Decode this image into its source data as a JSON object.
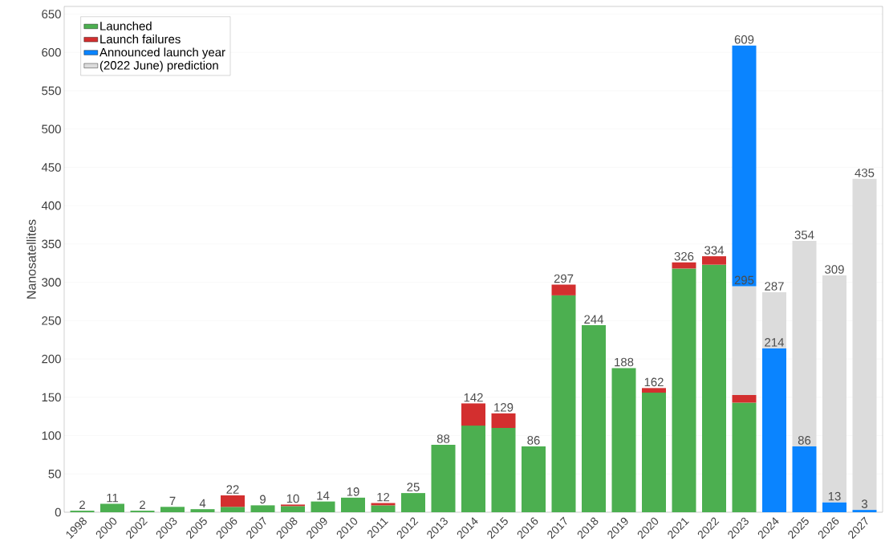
{
  "chart_data": {
    "type": "bar",
    "stacked": true,
    "ylabel": "Nanosatellites",
    "categories": [
      "1998",
      "2000",
      "2002",
      "2003",
      "2005",
      "2006",
      "2007",
      "2008",
      "2009",
      "2010",
      "2011",
      "2012",
      "2013",
      "2014",
      "2015",
      "2016",
      "2017",
      "2018",
      "2019",
      "2020",
      "2021",
      "2022",
      "2023",
      "2024",
      "2025",
      "2026",
      "2027"
    ],
    "series": [
      {
        "name": "Launched",
        "color": "#4caf50",
        "values": [
          2,
          11,
          2,
          7,
          4,
          7,
          9,
          8,
          14,
          19,
          9,
          25,
          88,
          113,
          110,
          86,
          283,
          244,
          188,
          156,
          318,
          323,
          143,
          null,
          null,
          null,
          null
        ]
      },
      {
        "name": "Launch failures",
        "color": "#d32f2f",
        "values": [
          null,
          null,
          null,
          null,
          null,
          15,
          null,
          2,
          null,
          null,
          3,
          null,
          null,
          29,
          19,
          null,
          14,
          null,
          null,
          6,
          8,
          11,
          10,
          null,
          null,
          null,
          null
        ]
      },
      {
        "color": "#dcdcdc",
        "values": [
          null,
          null,
          null,
          null,
          null,
          null,
          null,
          null,
          null,
          null,
          null,
          null,
          null,
          null,
          null,
          null,
          null,
          null,
          null,
          null,
          null,
          null,
          142,
          null,
          null,
          null,
          null
        ]
      },
      {
        "name": "Announced launch year",
        "color": "#0a84ff",
        "values": [
          null,
          null,
          null,
          null,
          null,
          null,
          null,
          null,
          null,
          null,
          null,
          null,
          null,
          null,
          null,
          null,
          null,
          null,
          null,
          null,
          null,
          null,
          314,
          214,
          86,
          13,
          3
        ]
      },
      {
        "name": "(2022 June) prediction",
        "color": "#dcdcdc",
        "values": [
          null,
          null,
          null,
          null,
          null,
          null,
          null,
          null,
          null,
          null,
          null,
          null,
          null,
          null,
          null,
          null,
          null,
          null,
          null,
          null,
          null,
          null,
          null,
          73,
          268,
          296,
          432
        ]
      }
    ],
    "totals": [
      "2",
      "11",
      "2",
      "7",
      "4",
      "22",
      "9",
      "10",
      "14",
      "19",
      "12",
      "25",
      "88",
      "142",
      "129",
      "86",
      "297",
      "244",
      "188",
      "162",
      "326",
      "334",
      "609",
      "287",
      "354",
      "309",
      "435"
    ],
    "annotations": [
      {
        "text": "295",
        "x": "2023",
        "y": 295
      },
      {
        "text": "214",
        "x": "2024",
        "y": 214
      },
      {
        "text": "86",
        "x": "2025",
        "y": 86
      },
      {
        "text": "13",
        "x": "2026",
        "y": 13
      },
      {
        "text": "3",
        "x": "2027",
        "y": 3
      }
    ],
    "ylim": [
      0,
      660
    ],
    "yticks": [
      0,
      50,
      100,
      150,
      200,
      250,
      300,
      350,
      400,
      450,
      500,
      550,
      600,
      650
    ],
    "grid": "y",
    "legend": "top left"
  }
}
